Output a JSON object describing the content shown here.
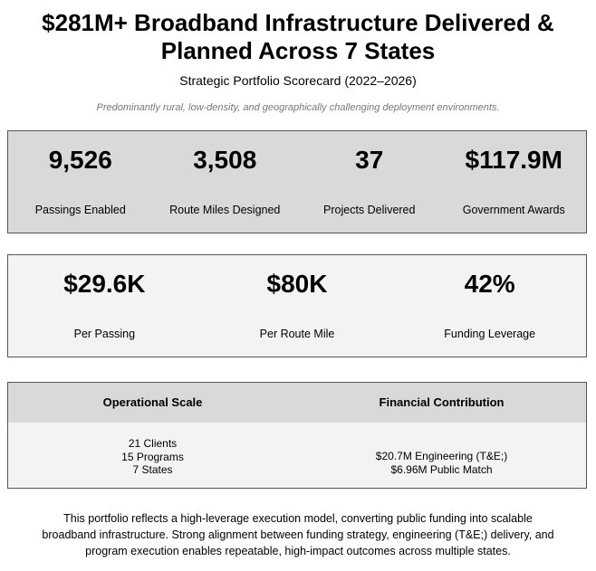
{
  "header": {
    "title_line1": "$281M+ Broadband Infrastructure Delivered &",
    "title_line2": "Planned Across 7 States",
    "subtitle": "Strategic Portfolio Scorecard (2022–2026)",
    "note": "Predominantly rural, low-density, and geographically challenging deployment environments."
  },
  "primary_kpis": [
    {
      "value": "9,526",
      "label": "Passings Enabled"
    },
    {
      "value": "3,508",
      "label": "Route Miles Designed"
    },
    {
      "value": "37",
      "label": "Projects Delivered"
    },
    {
      "value": "$117.9M",
      "label": "Government Awards"
    }
  ],
  "secondary_kpis": [
    {
      "value": "$29.6K",
      "label": "Per Passing"
    },
    {
      "value": "$80K",
      "label": "Per Route Mile"
    },
    {
      "value": "42%",
      "label": "Funding Leverage"
    }
  ],
  "breakdown": {
    "left_header": "Operational Scale",
    "right_header": "Financial Contribution",
    "left_items": [
      "21 Clients",
      "15 Programs",
      "7 States"
    ],
    "right_items": [
      "$20.7M Engineering (T&E;)",
      "$6.96M Public Match"
    ]
  },
  "summary": {
    "line1": "This portfolio reflects a high-leverage execution model, converting public funding into scalable",
    "line2": "broadband infrastructure. Strong alignment between funding strategy, engineering (T&E;) delivery, and",
    "line3": "program execution enables repeatable, high-impact outcomes across multiple states."
  },
  "colors": {
    "panel_dark": "#d9d9d9",
    "panel_light": "#f3f3f3",
    "border": "#555555",
    "note_text": "#777777"
  }
}
